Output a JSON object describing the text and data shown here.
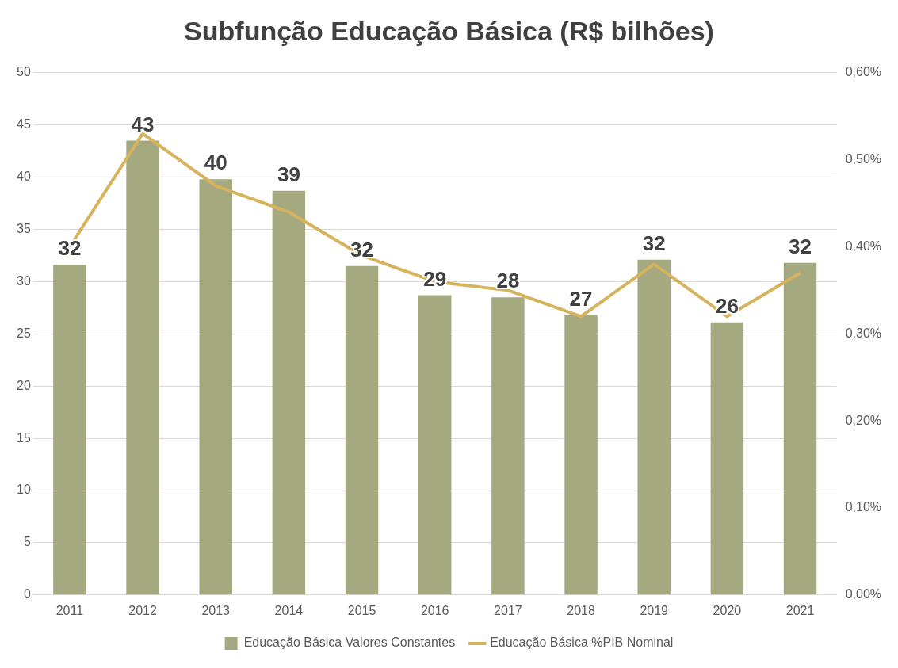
{
  "chart_data": {
    "type": "bar",
    "title": "Subfunção Educação Básica (R$ bilhões)",
    "categories": [
      "2011",
      "2012",
      "2013",
      "2014",
      "2015",
      "2016",
      "2017",
      "2018",
      "2019",
      "2020",
      "2021"
    ],
    "series": [
      {
        "name": "Educação Básica Valores Constantes",
        "color": "#a4a980",
        "values": [
          31.6,
          43.5,
          39.8,
          38.7,
          31.5,
          28.7,
          28.5,
          26.8,
          32.1,
          26.1,
          31.8
        ],
        "value_labels": [
          "32",
          "43",
          "40",
          "39",
          "32",
          "29",
          "28",
          "27",
          "32",
          "26",
          "32"
        ]
      },
      {
        "name": "Educação Básica %PIB Nominal",
        "type": "line",
        "axis": "y2",
        "color": "#d6b35c",
        "values": [
          0.4,
          0.53,
          0.47,
          0.44,
          0.39,
          0.36,
          0.35,
          0.32,
          0.38,
          0.32,
          0.37
        ]
      }
    ],
    "ylim": [
      0,
      50
    ],
    "yticks": [
      0,
      5,
      10,
      15,
      20,
      25,
      30,
      35,
      40,
      45,
      50
    ],
    "y2lim": [
      0,
      0.6
    ],
    "y2ticks": [
      {
        "value": 0,
        "label": "0,00%"
      },
      {
        "value": 0.1,
        "label": "0,10%"
      },
      {
        "value": 0.2,
        "label": "0,20%"
      },
      {
        "value": 0.3,
        "label": "0,30%"
      },
      {
        "value": 0.4,
        "label": "0,40%"
      },
      {
        "value": 0.5,
        "label": "0,50%"
      },
      {
        "value": 0.6,
        "label": "0,60%"
      }
    ],
    "grid": "y",
    "legend": "bottom"
  }
}
